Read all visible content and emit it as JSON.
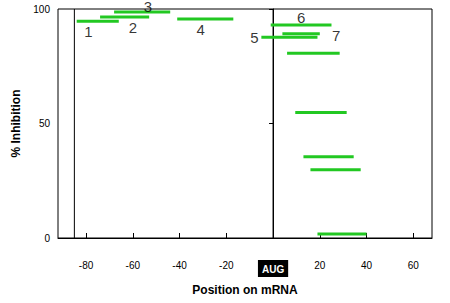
{
  "chart_data": {
    "type": "segments",
    "xlabel": "Position on mRNA",
    "ylabel": "% Inhibition",
    "xlim": [
      -92,
      68
    ],
    "ylim": [
      0,
      100
    ],
    "xticks": [
      -80,
      -60,
      -40,
      -20,
      {
        "value": 0,
        "label": "AUG"
      },
      20,
      40,
      60
    ],
    "yticks": [
      0,
      50,
      100
    ],
    "color": "#22c822",
    "vlines": [
      -85,
      0
    ],
    "segments": [
      {
        "start": -84,
        "end": -66,
        "value": 94.7
      },
      {
        "start": -74,
        "end": -53,
        "value": 96.5
      },
      {
        "start": -68,
        "end": -44,
        "value": 98.7
      },
      {
        "start": -41,
        "end": -17,
        "value": 95.6
      },
      {
        "start": -5,
        "end": 19,
        "value": 87.7
      },
      {
        "start": -1,
        "end": 25,
        "value": 93
      },
      {
        "start": 4,
        "end": 20,
        "value": 89.2
      },
      {
        "start": 6,
        "end": 28.5,
        "value": 80.7
      },
      {
        "start": 9.5,
        "end": 31.5,
        "value": 54.8
      },
      {
        "start": 13,
        "end": 34.5,
        "value": 35.5
      },
      {
        "start": 16,
        "end": 37.5,
        "value": 29.8
      },
      {
        "start": 19,
        "end": 40,
        "value": 1.8
      }
    ],
    "annotations": [
      {
        "text": "1",
        "x": -79,
        "y": 90
      },
      {
        "text": "2",
        "x": -60,
        "y": 92
      },
      {
        "text": "3",
        "x": -53.5,
        "y": 101
      },
      {
        "text": "4",
        "x": -31,
        "y": 91
      },
      {
        "text": "5",
        "x": -8,
        "y": 87.5
      },
      {
        "text": "6",
        "x": 12,
        "y": 96.5
      },
      {
        "text": "7",
        "x": 27,
        "y": 88.5
      }
    ]
  }
}
